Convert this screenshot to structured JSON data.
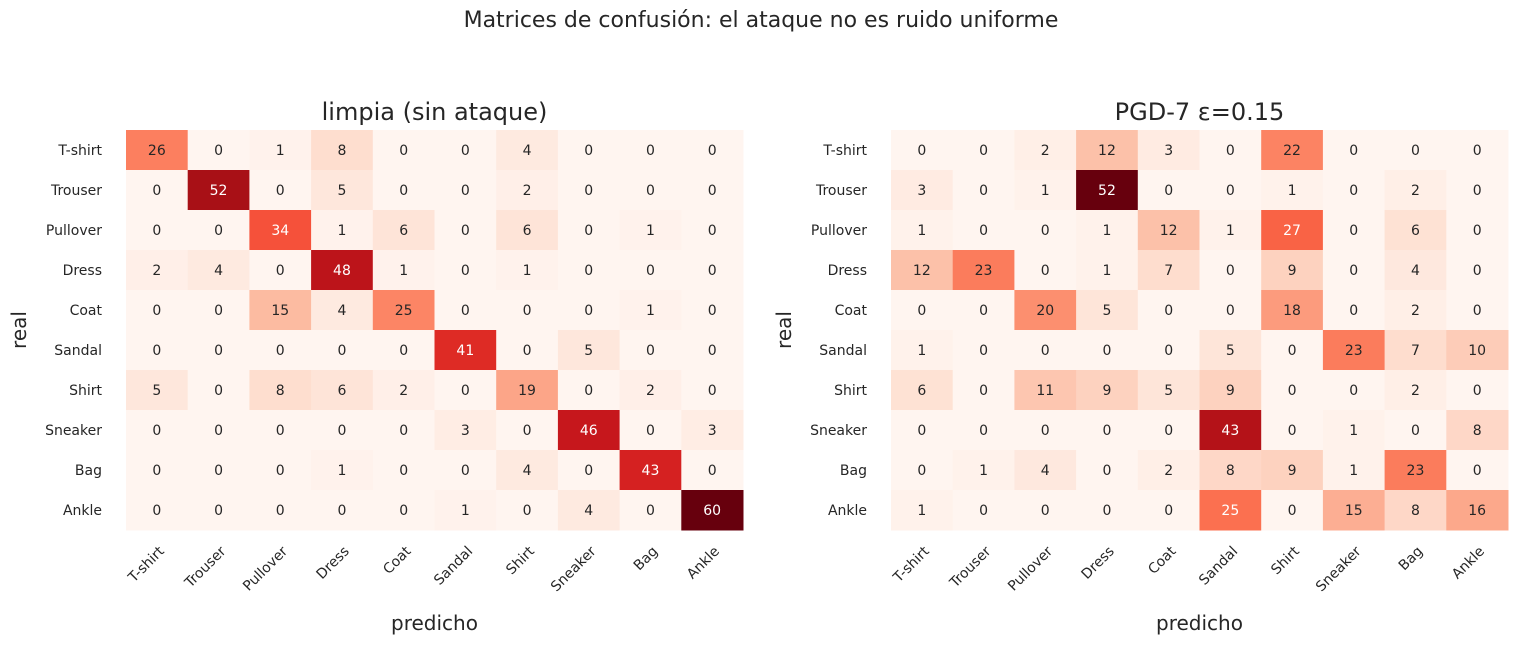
{
  "suptitle": "Matrices de confusión: el ataque no es ruido uniforme",
  "chart_data": [
    {
      "type": "heatmap",
      "title": "limpia (sin ataque)",
      "xlabel": "predicho",
      "ylabel": "real",
      "colormap": "Reds",
      "x_categories": [
        "T-shirt",
        "Trouser",
        "Pullover",
        "Dress",
        "Coat",
        "Sandal",
        "Shirt",
        "Sneaker",
        "Bag",
        "Ankle"
      ],
      "y_categories": [
        "T-shirt",
        "Trouser",
        "Pullover",
        "Dress",
        "Coat",
        "Sandal",
        "Shirt",
        "Sneaker",
        "Bag",
        "Ankle"
      ],
      "values": [
        [
          26,
          0,
          1,
          8,
          0,
          0,
          4,
          0,
          0,
          0
        ],
        [
          0,
          52,
          0,
          5,
          0,
          0,
          2,
          0,
          0,
          0
        ],
        [
          0,
          0,
          34,
          1,
          6,
          0,
          6,
          0,
          1,
          0
        ],
        [
          2,
          4,
          0,
          48,
          1,
          0,
          1,
          0,
          0,
          0
        ],
        [
          0,
          0,
          15,
          4,
          25,
          0,
          0,
          0,
          1,
          0
        ],
        [
          0,
          0,
          0,
          0,
          0,
          41,
          0,
          5,
          0,
          0
        ],
        [
          5,
          0,
          8,
          6,
          2,
          0,
          19,
          0,
          2,
          0
        ],
        [
          0,
          0,
          0,
          0,
          0,
          3,
          0,
          46,
          0,
          3
        ],
        [
          0,
          0,
          0,
          1,
          0,
          0,
          4,
          0,
          43,
          0
        ],
        [
          0,
          0,
          0,
          0,
          0,
          1,
          0,
          4,
          0,
          60
        ]
      ]
    },
    {
      "type": "heatmap",
      "title": "PGD-7 ε=0.15",
      "xlabel": "predicho",
      "ylabel": "real",
      "colormap": "Reds",
      "x_categories": [
        "T-shirt",
        "Trouser",
        "Pullover",
        "Dress",
        "Coat",
        "Sandal",
        "Shirt",
        "Sneaker",
        "Bag",
        "Ankle"
      ],
      "y_categories": [
        "T-shirt",
        "Trouser",
        "Pullover",
        "Dress",
        "Coat",
        "Sandal",
        "Shirt",
        "Sneaker",
        "Bag",
        "Ankle"
      ],
      "values": [
        [
          0,
          0,
          2,
          12,
          3,
          0,
          22,
          0,
          0,
          0
        ],
        [
          3,
          0,
          1,
          52,
          0,
          0,
          1,
          0,
          2,
          0
        ],
        [
          1,
          0,
          0,
          1,
          12,
          1,
          27,
          0,
          6,
          0
        ],
        [
          12,
          23,
          0,
          1,
          7,
          0,
          9,
          0,
          4,
          0
        ],
        [
          0,
          0,
          20,
          5,
          0,
          0,
          18,
          0,
          2,
          0
        ],
        [
          1,
          0,
          0,
          0,
          0,
          5,
          0,
          23,
          7,
          10
        ],
        [
          6,
          0,
          11,
          9,
          5,
          9,
          0,
          0,
          2,
          0
        ],
        [
          0,
          0,
          0,
          0,
          0,
          43,
          0,
          1,
          0,
          8
        ],
        [
          0,
          1,
          4,
          0,
          2,
          8,
          9,
          1,
          23,
          0
        ],
        [
          1,
          0,
          0,
          0,
          0,
          25,
          0,
          15,
          8,
          16
        ]
      ]
    }
  ]
}
